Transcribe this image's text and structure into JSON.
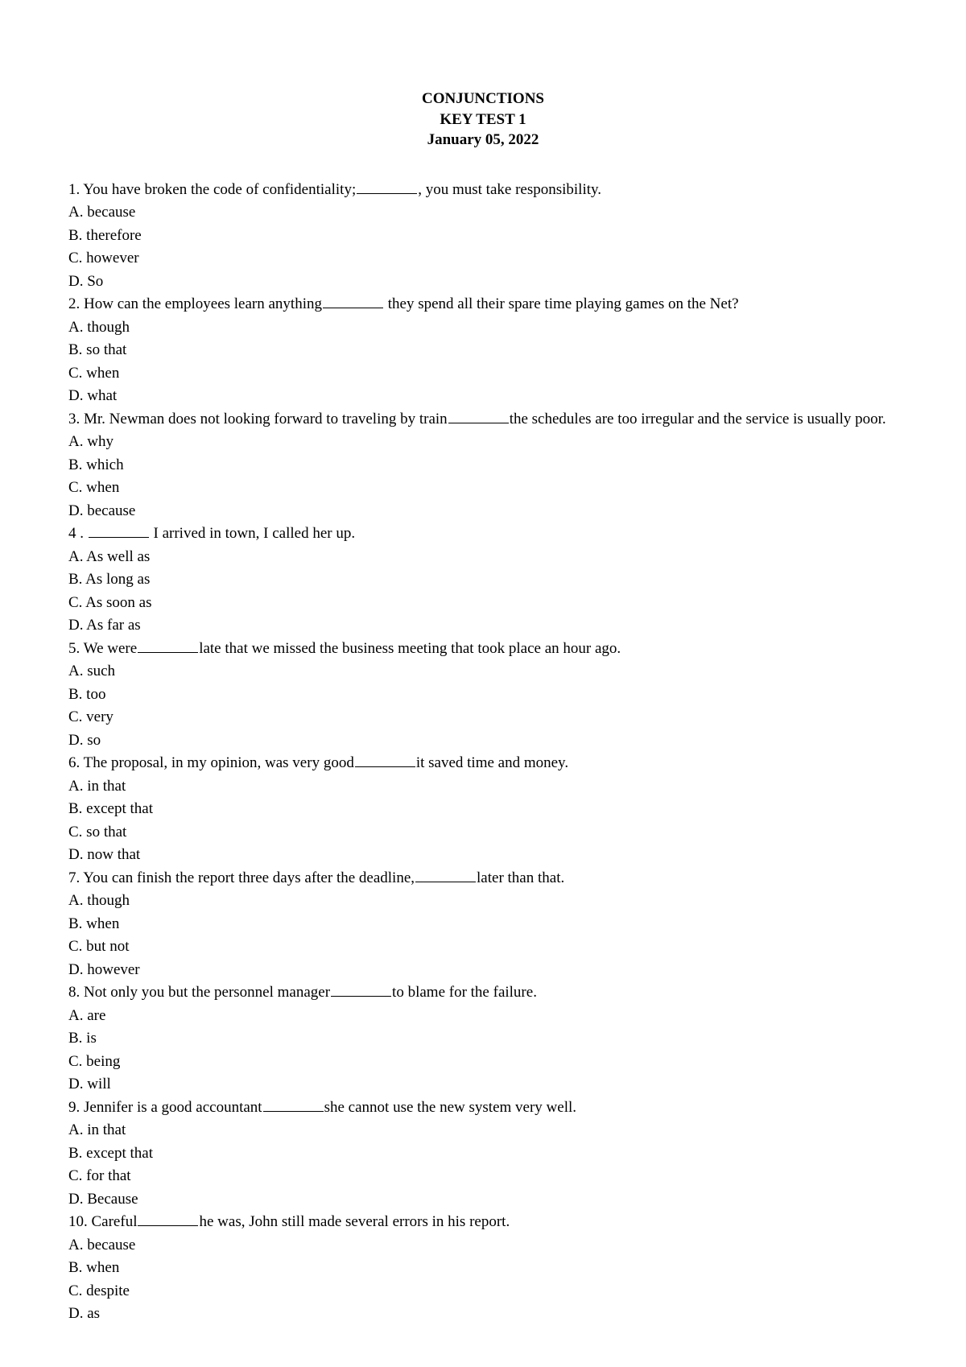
{
  "header": {
    "title1": "CONJUNCTIONS",
    "title2": "KEY TEST 1",
    "date": "January 05, 2022"
  },
  "questions": [
    {
      "num": "1.",
      "pre": "You have broken the code of confidentiality;",
      "post": ", you must take responsibility.",
      "options": [
        "A. because",
        "B. therefore",
        "C. however",
        "D. So"
      ]
    },
    {
      "num": "2.",
      "pre": "How can the employees learn anything",
      "post": " they spend all their spare time playing games on the Net?",
      "options": [
        "A. though",
        "B. so that",
        "C. when",
        "D. what"
      ]
    },
    {
      "num": "3.",
      "pre": "Mr. Newman does not looking forward to traveling by train",
      "post": "the schedules are too irregular and the service is usually poor.",
      "options": [
        "A. why",
        "B. which",
        "C. when",
        "D. because"
      ]
    },
    {
      "num": "4 .",
      "pre": "",
      "post": " I arrived in town, I called her up.",
      "options": [
        "A. As well as",
        "B. As long as",
        "C. As soon as",
        "D. As far as"
      ]
    },
    {
      "num": "5.",
      "pre": "We were",
      "post": "late that we missed the business meeting that took place an hour ago.",
      "options": [
        "A. such",
        "B. too",
        "C. very",
        "D. so"
      ]
    },
    {
      "num": "6.",
      "pre": "The proposal, in my opinion, was very good",
      "post": "it saved time and money.",
      "options": [
        "A. in that",
        "B. except that",
        "C. so that",
        "D. now that"
      ]
    },
    {
      "num": "7.",
      "pre": "You can finish the report three days after the deadline,",
      "post": "later than that.",
      "options": [
        "A. though",
        "B. when",
        "C. but not",
        "D. however"
      ]
    },
    {
      "num": "8.",
      "pre": "Not only you but the personnel manager",
      "post": "to blame for the failure.",
      "options": [
        "A. are",
        "B. is",
        "C. being",
        "D. will"
      ]
    },
    {
      "num": "9.",
      "pre": "Jennifer is a good accountant",
      "post": "she cannot use the new system very well.",
      "options": [
        "A. in that",
        "B. except that",
        "C. for that",
        "D. Because"
      ]
    },
    {
      "num": "10.",
      "pre": "Careful",
      "post": "he was, John still made several errors in his report.",
      "options": [
        "A. because",
        "B. when",
        "C. despite",
        "D. as"
      ]
    }
  ]
}
